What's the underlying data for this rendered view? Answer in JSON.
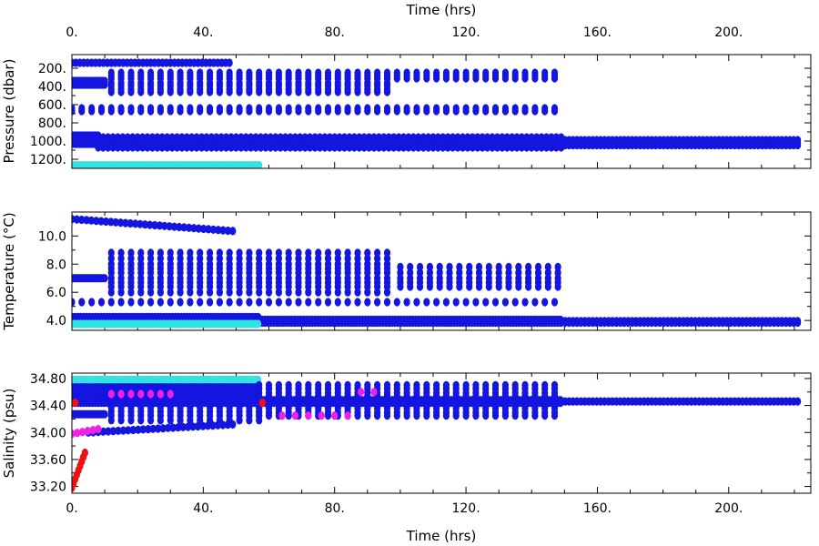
{
  "colors": {
    "blue": "#1515e0",
    "cyan": "#33e3e3",
    "magenta": "#f020e8",
    "red": "#f01010"
  },
  "chart_data": [
    {
      "type": "scatter",
      "xlabel": "Time (hrs)",
      "ylabel": "Pressure (dbar)",
      "xlim": [
        0,
        225
      ],
      "ylim": [
        1300,
        50
      ],
      "x_ticks": [
        "0.",
        "40.",
        "80.",
        "120.",
        "160.",
        "200."
      ],
      "y_ticks": [
        "200.",
        "400.",
        "600.",
        "800.",
        "1000.",
        "1200."
      ],
      "x_tick_values": [
        0,
        40,
        80,
        120,
        160,
        200
      ],
      "y_tick_values": [
        200,
        400,
        600,
        800,
        1000,
        1200
      ],
      "series": [
        {
          "color": "blue",
          "pattern": "repeat",
          "start": 0,
          "end": 49,
          "step": 1.2,
          "values": [
            140
          ]
        },
        {
          "color": "blue",
          "pattern": "repeat",
          "start": 0,
          "end": 10,
          "step": 0.5,
          "values": [
            340,
            380
          ]
        },
        {
          "color": "blue",
          "pattern": "repeat",
          "start": 12,
          "end": 149,
          "step": 3,
          "values": [
            250,
            280,
            310
          ]
        },
        {
          "color": "blue",
          "pattern": "repeat",
          "start": 12,
          "end": 97,
          "step": 3,
          "values": [
            360,
            390,
            430,
            460
          ]
        },
        {
          "color": "blue",
          "pattern": "repeat",
          "start": 0,
          "end": 149,
          "step": 3,
          "values": [
            640,
            670
          ]
        },
        {
          "color": "blue",
          "pattern": "repeat",
          "start": 0,
          "end": 8,
          "step": 0.5,
          "values": [
            940,
            970,
            1000,
            1030
          ]
        },
        {
          "color": "blue",
          "pattern": "repeat",
          "start": 8,
          "end": 149,
          "step": 1.5,
          "values": [
            960,
            990,
            1010,
            1040,
            1070
          ]
        },
        {
          "color": "blue",
          "pattern": "repeat",
          "start": 149,
          "end": 222,
          "step": 1.2,
          "values": [
            990,
            1020,
            1045
          ]
        },
        {
          "color": "cyan",
          "pattern": "repeat",
          "start": 0,
          "end": 57,
          "step": 1,
          "values": [
            1265
          ]
        }
      ]
    },
    {
      "type": "scatter",
      "xlabel": "",
      "ylabel": "Temperature (°C)",
      "xlim": [
        0,
        225
      ],
      "ylim": [
        3.3,
        11.7
      ],
      "x_ticks": [],
      "y_ticks": [
        "4.0",
        "6.0",
        "8.0",
        "10.0"
      ],
      "y_tick_values": [
        4,
        6,
        8,
        10
      ],
      "series": [
        {
          "color": "blue",
          "pattern": "ramp",
          "start": 0,
          "end": 49,
          "step": 1.5,
          "from": 11.2,
          "to": 10.35
        },
        {
          "color": "blue",
          "pattern": "repeat",
          "start": 0,
          "end": 10,
          "step": 0.5,
          "values": [
            7.0
          ]
        },
        {
          "color": "blue",
          "pattern": "repeat",
          "start": 12,
          "end": 97,
          "step": 3,
          "values": [
            8.8,
            8.4,
            8.0,
            7.7,
            7.4,
            7.0,
            6.7,
            6.4,
            6.0
          ]
        },
        {
          "color": "blue",
          "pattern": "repeat",
          "start": 100,
          "end": 149,
          "step": 3,
          "values": [
            7.8,
            7.4,
            7.0,
            6.7,
            6.4
          ]
        },
        {
          "color": "blue",
          "pattern": "repeat",
          "start": 0,
          "end": 149,
          "step": 3,
          "values": [
            5.3
          ]
        },
        {
          "color": "blue",
          "pattern": "repeat",
          "start": 0,
          "end": 57,
          "step": 0.9,
          "values": [
            4.25,
            4.0
          ]
        },
        {
          "color": "blue",
          "pattern": "repeat",
          "start": 57,
          "end": 149,
          "step": 0.9,
          "values": [
            4.05,
            3.85
          ]
        },
        {
          "color": "blue",
          "pattern": "repeat",
          "start": 149,
          "end": 222,
          "step": 1.2,
          "values": [
            3.95,
            3.85
          ]
        },
        {
          "color": "cyan",
          "pattern": "repeat",
          "start": 0,
          "end": 57,
          "step": 0.9,
          "values": [
            3.75
          ]
        }
      ]
    },
    {
      "type": "scatter",
      "xlabel": "Time (hrs)",
      "ylabel": "Salinity (psu)",
      "xlim": [
        0,
        225
      ],
      "ylim": [
        33.1,
        34.88
      ],
      "x_ticks": [
        "0.",
        "40.",
        "80.",
        "120.",
        "160.",
        "200."
      ],
      "x_tick_values": [
        0,
        40,
        80,
        120,
        160,
        200
      ],
      "y_ticks": [
        "33.20",
        "33.60",
        "34.00",
        "34.40",
        "34.80"
      ],
      "y_tick_values": [
        33.2,
        33.6,
        34.0,
        34.4,
        34.8
      ],
      "series": [
        {
          "color": "cyan",
          "pattern": "repeat",
          "start": 0,
          "end": 57,
          "step": 0.9,
          "values": [
            34.78,
            34.73
          ]
        },
        {
          "color": "blue",
          "pattern": "repeat",
          "start": 0,
          "end": 57,
          "step": 0.9,
          "values": [
            34.67,
            34.62,
            34.56,
            34.5,
            34.44
          ]
        },
        {
          "color": "blue",
          "pattern": "repeat",
          "start": 0,
          "end": 10,
          "step": 0.5,
          "values": [
            34.27
          ]
        },
        {
          "color": "blue",
          "pattern": "repeat",
          "start": 12,
          "end": 57,
          "step": 3,
          "values": [
            34.37,
            34.31,
            34.25,
            34.18
          ]
        },
        {
          "color": "blue",
          "pattern": "ramp",
          "start": 5,
          "end": 49,
          "step": 1.5,
          "from": 34.0,
          "to": 34.12
        },
        {
          "color": "blue",
          "pattern": "repeat",
          "start": 57,
          "end": 149,
          "step": 3,
          "values": [
            34.7,
            34.65,
            34.59,
            34.54,
            34.48,
            34.42,
            34.36,
            34.3,
            34.25
          ]
        },
        {
          "color": "blue",
          "pattern": "repeat",
          "start": 57,
          "end": 149,
          "step": 0.9,
          "values": [
            34.48,
            34.44
          ]
        },
        {
          "color": "blue",
          "pattern": "repeat",
          "start": 149,
          "end": 222,
          "step": 1.2,
          "values": [
            34.46
          ]
        },
        {
          "color": "magenta",
          "pattern": "ramp",
          "start": 0,
          "end": 8,
          "step": 1.5,
          "from": 33.98,
          "to": 34.05
        },
        {
          "color": "magenta",
          "pattern": "repeat",
          "start": 12,
          "end": 30,
          "step": 3,
          "values": [
            34.57
          ]
        },
        {
          "color": "magenta",
          "pattern": "repeat",
          "start": 64,
          "end": 85,
          "step": 4,
          "values": [
            34.25
          ]
        },
        {
          "color": "magenta",
          "pattern": "repeat",
          "start": 88,
          "end": 93,
          "step": 4,
          "values": [
            34.6
          ]
        },
        {
          "color": "red",
          "pattern": "ramp",
          "start": 0,
          "end": 4,
          "step": 0.5,
          "from": 33.18,
          "to": 33.7
        },
        {
          "color": "red",
          "pattern": "points",
          "points": [
            [
              58,
              34.44
            ],
            [
              1,
              34.44
            ]
          ]
        }
      ]
    }
  ]
}
